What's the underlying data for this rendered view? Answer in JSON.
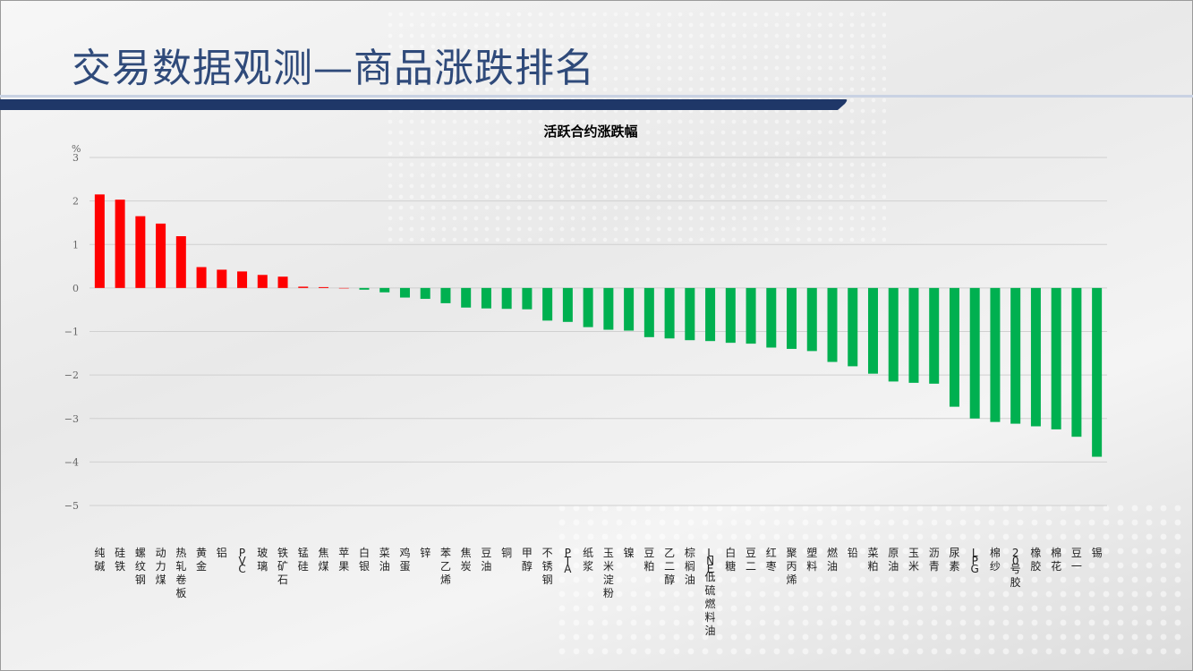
{
  "slide": {
    "title": "交易数据观测—商品涨跌排名"
  },
  "colors": {
    "title": "#2f4a7a",
    "band_dark": "#1f3768",
    "band_light": "#c9d2e3",
    "positive": "#ff0000",
    "negative": "#00b050",
    "grid": "#d0d0d0",
    "axis_text": "#666666"
  },
  "chart_data": {
    "type": "bar",
    "title": "活跃合约涨跌幅",
    "ylabel": "%",
    "ylim": [
      -5,
      3
    ],
    "yticks": [
      3,
      2,
      1,
      0,
      -1,
      -2,
      -3,
      -4,
      -5
    ],
    "ytick_labels": [
      "3",
      "2",
      "1",
      "0",
      "−1",
      "−2",
      "−3",
      "−4",
      "−5"
    ],
    "grid": true,
    "categories": [
      "纯碱",
      "硅铁",
      "螺纹钢",
      "动力煤",
      "热轧卷板",
      "黄金",
      "铝",
      "PVC",
      "玻璃",
      "铁矿石",
      "锰硅",
      "焦煤",
      "苹果",
      "白银",
      "菜油",
      "鸡蛋",
      "锌",
      "苯乙烯",
      "焦炭",
      "豆油",
      "铜",
      "甲醇",
      "不锈钢",
      "PTA",
      "纸浆",
      "玉米淀粉",
      "镍",
      "豆粕",
      "乙二醇",
      "棕榈油",
      "LNE低硫燃料油",
      "白糖",
      "豆二",
      "红枣",
      "聚丙烯",
      "塑料",
      "燃油",
      "铅",
      "菜粕",
      "原油",
      "玉米",
      "沥青",
      "尿素",
      "LPG",
      "棉纱",
      "20号胶",
      "橡胶",
      "棉花",
      "豆一",
      "锡"
    ],
    "values": [
      2.15,
      2.03,
      1.65,
      1.48,
      1.19,
      0.48,
      0.42,
      0.38,
      0.3,
      0.26,
      0.03,
      0.02,
      0.0,
      -0.04,
      -0.1,
      -0.22,
      -0.25,
      -0.35,
      -0.45,
      -0.47,
      -0.48,
      -0.49,
      -0.75,
      -0.78,
      -0.9,
      -0.96,
      -0.98,
      -1.13,
      -1.16,
      -1.2,
      -1.22,
      -1.26,
      -1.28,
      -1.37,
      -1.4,
      -1.45,
      -1.7,
      -1.8,
      -1.97,
      -2.15,
      -2.18,
      -2.2,
      -2.73,
      -3.0,
      -3.08,
      -3.12,
      -3.18,
      -3.25,
      -3.42,
      -3.88
    ]
  }
}
